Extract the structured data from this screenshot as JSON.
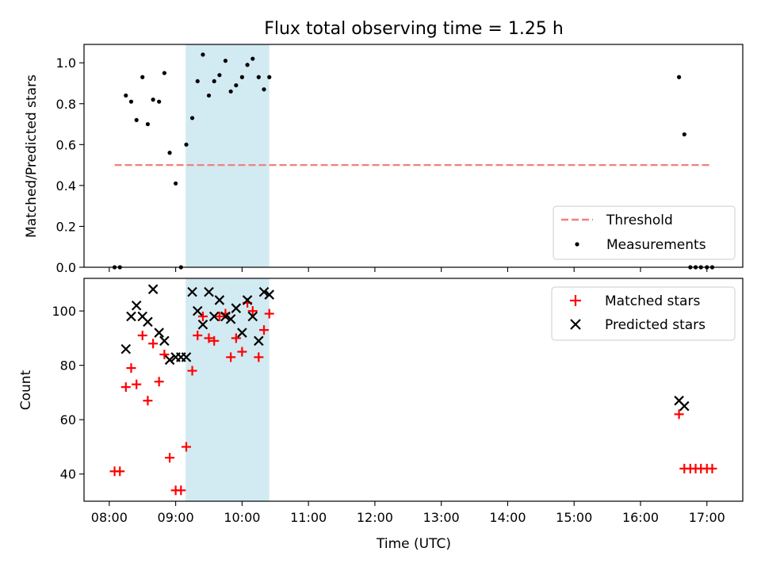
{
  "chart_data": {
    "type": "scatter",
    "title": "Flux total observing time = 1.25 h",
    "xlabel": "Time (UTC)",
    "x_tick_labels": [
      "08:00",
      "09:00",
      "10:00",
      "11:00",
      "12:00",
      "13:00",
      "14:00",
      "15:00",
      "16:00",
      "17:00"
    ],
    "xlim": [
      7.62,
      17.54
    ],
    "highlight_span": [
      9.15,
      10.41
    ],
    "colors": {
      "threshold": "#f08080",
      "match": "#ff0000",
      "pred": "#000000",
      "point": "#000000",
      "span": "#add8e6"
    },
    "panels": [
      {
        "ylabel": "Matched/Predicted stars",
        "ylim": [
          0,
          1.09
        ],
        "yticks": [
          0,
          0.2,
          0.4,
          0.6,
          0.8,
          1.0
        ],
        "ytick_labels": [
          "0.0",
          "0.2",
          "0.4",
          "0.6",
          "0.8",
          "1.0"
        ],
        "legend": {
          "placement": "lower right",
          "entries": [
            "Threshold",
            "Measurements"
          ]
        },
        "threshold": {
          "name": "Threshold",
          "y": 0.5,
          "x": [
            8.08,
            17.08
          ]
        },
        "measurements": {
          "name": "Measurements",
          "x": [
            8.08,
            8.16,
            8.25,
            8.33,
            8.41,
            8.5,
            8.58,
            8.66,
            8.75,
            8.83,
            8.91,
            9.0,
            9.08,
            9.16,
            9.25,
            9.33,
            9.41,
            9.5,
            9.58,
            9.66,
            9.75,
            9.83,
            9.91,
            10.0,
            10.08,
            10.16,
            10.25,
            10.33,
            10.41,
            16.58,
            16.66,
            16.75,
            16.83,
            16.91,
            17.0,
            17.08
          ],
          "y": [
            0.0,
            0.0,
            0.84,
            0.81,
            0.72,
            0.93,
            0.7,
            0.82,
            0.81,
            0.95,
            0.56,
            0.41,
            0.0,
            0.6,
            0.73,
            0.91,
            1.04,
            0.84,
            0.91,
            0.94,
            1.01,
            0.86,
            0.89,
            0.93,
            0.99,
            1.02,
            0.93,
            0.87,
            0.93,
            0.93,
            0.65,
            0.0,
            0.0,
            0.0,
            0.0,
            0.0
          ]
        }
      },
      {
        "ylabel": "Count",
        "ylim": [
          30,
          112
        ],
        "yticks": [
          40,
          60,
          80,
          100
        ],
        "ytick_labels": [
          "40",
          "60",
          "80",
          "100"
        ],
        "legend": {
          "placement": "upper right",
          "entries": [
            "Matched stars",
            "Predicted stars"
          ]
        },
        "series": [
          {
            "name": "Matched stars",
            "marker": "+",
            "x": [
              8.08,
              8.16,
              8.25,
              8.33,
              8.41,
              8.5,
              8.58,
              8.66,
              8.75,
              8.83,
              8.91,
              9.0,
              9.08,
              9.16,
              9.25,
              9.33,
              9.41,
              9.5,
              9.58,
              9.66,
              9.75,
              9.83,
              9.91,
              10.0,
              10.08,
              10.16,
              10.25,
              10.33,
              10.41,
              16.58,
              16.66,
              16.75,
              16.83,
              16.91,
              17.0,
              17.08
            ],
            "y": [
              41,
              41,
              72,
              79,
              73,
              91,
              67,
              88,
              74,
              84,
              46,
              34,
              34,
              50,
              78,
              91,
              98,
              90,
              89,
              98,
              99,
              83,
              90,
              85,
              103,
              100,
              83,
              93,
              99,
              62,
              42,
              42,
              42,
              42,
              42,
              42
            ]
          },
          {
            "name": "Predicted stars",
            "marker": "x",
            "x": [
              8.25,
              8.33,
              8.41,
              8.5,
              8.58,
              8.66,
              8.75,
              8.83,
              8.91,
              9.0,
              9.08,
              9.16,
              9.25,
              9.33,
              9.41,
              9.5,
              9.58,
              9.66,
              9.75,
              9.83,
              9.91,
              10.0,
              10.08,
              10.16,
              10.25,
              10.33,
              10.41,
              16.58,
              16.66
            ],
            "y": [
              86,
              98,
              102,
              98,
              96,
              108,
              92,
              89,
              82,
              83,
              83,
              83,
              107,
              100,
              95,
              107,
              98,
              104,
              98,
              97,
              101,
              92,
              104,
              98,
              89,
              107,
              106,
              67,
              65
            ]
          }
        ]
      }
    ]
  }
}
